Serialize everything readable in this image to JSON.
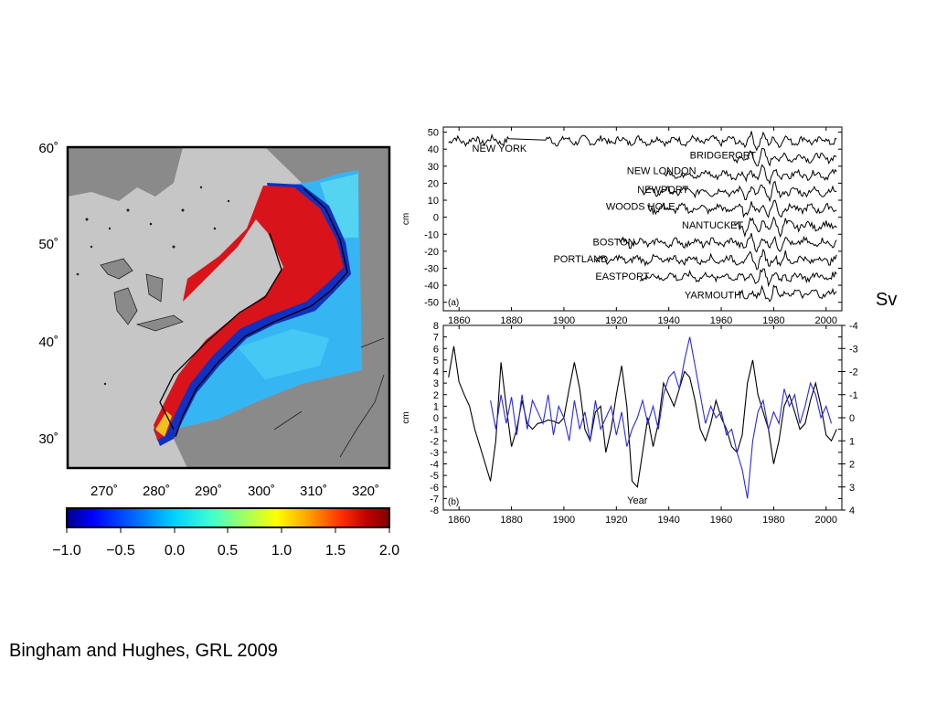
{
  "citation": "Bingham and Hughes, GRL 2009",
  "side_label": "Sv",
  "map": {
    "lat_labels": [
      "60˚",
      "50˚",
      "40˚",
      "30˚"
    ],
    "lat_values": [
      60,
      50,
      40,
      30
    ],
    "lon_labels": [
      "270˚",
      "280˚",
      "290˚",
      "300˚",
      "310˚",
      "320˚"
    ],
    "lon_values": [
      270,
      280,
      290,
      300,
      310,
      320
    ],
    "lon_range": [
      263,
      326
    ],
    "lat_range": [
      27,
      61
    ],
    "colors": {
      "land": "#c6c6c6",
      "shelf": "#8a8a8a",
      "ocean_low": "#3fb8f0",
      "ocean_high": "#d0161a",
      "contour": "#000000"
    },
    "colorbar": {
      "ticks": [
        "−1.0",
        "−0.5",
        "0.0",
        "0.5",
        "1.0",
        "1.5",
        "2.0"
      ],
      "range": [
        -1.0,
        2.0
      ],
      "colormap": [
        "#00008a",
        "#0000ff",
        "#0070ff",
        "#00d0ff",
        "#40ffd0",
        "#a0ff60",
        "#ffff00",
        "#ffa000",
        "#ff3000",
        "#c00000",
        "#800000"
      ]
    }
  },
  "chart_data": [
    {
      "type": "line",
      "panel_label": "(a)",
      "ylabel": "cm",
      "xlim": [
        1854,
        2006
      ],
      "ylim": [
        -55,
        53
      ],
      "xticks": [
        1860,
        1880,
        1900,
        1920,
        1940,
        1960,
        1980,
        2000
      ],
      "yticks": [
        50,
        40,
        30,
        20,
        10,
        0,
        -10,
        -20,
        -30,
        -40,
        -50
      ],
      "series": [
        {
          "name": "NEW YORK",
          "start": 1856,
          "offset": 45
        },
        {
          "name": "BRIDGEPORT",
          "start": 1964,
          "offset": 35
        },
        {
          "name": "NEW LONDON",
          "start": 1938,
          "offset": 25
        },
        {
          "name": "NEWPORT",
          "start": 1930,
          "offset": 15
        },
        {
          "name": "WOODS HOLE",
          "start": 1932,
          "offset": 5
        },
        {
          "name": "NANTUCKET",
          "start": 1965,
          "offset": -5
        },
        {
          "name": "BOSTON",
          "start": 1921,
          "offset": -15
        },
        {
          "name": "PORTLAND",
          "start": 1912,
          "offset": -25
        },
        {
          "name": "EASTPORT",
          "start": 1929,
          "offset": -35
        },
        {
          "name": "YARMOUTH",
          "start": 1966,
          "offset": -45
        }
      ]
    },
    {
      "type": "line",
      "panel_label": "(b)",
      "xlabel": "Year",
      "ylabel": "cm",
      "xlim": [
        1854,
        2006
      ],
      "ylim": [
        -8,
        8
      ],
      "y2lim": [
        4,
        -4
      ],
      "xticks": [
        1860,
        1880,
        1900,
        1920,
        1940,
        1960,
        1980,
        2000
      ],
      "yticks": [
        8,
        7,
        6,
        5,
        4,
        3,
        2,
        1,
        0,
        -1,
        -2,
        -3,
        -4,
        -5,
        -6,
        -7,
        -8
      ],
      "y2ticks": [
        -4,
        -3,
        -2,
        -1,
        0,
        1,
        2,
        3,
        4
      ],
      "series": [
        {
          "color": "#000000",
          "x": [
            1856,
            1858,
            1860,
            1862,
            1864,
            1866,
            1868,
            1870,
            1872,
            1874,
            1876,
            1878,
            1880,
            1882,
            1884,
            1886,
            1888,
            1890,
            1892,
            1894,
            1896,
            1898,
            1900,
            1902,
            1904,
            1906,
            1908,
            1910,
            1912,
            1914,
            1916,
            1918,
            1920,
            1922,
            1924,
            1926,
            1928,
            1930,
            1932,
            1934,
            1936,
            1938,
            1940,
            1942,
            1944,
            1946,
            1948,
            1950,
            1952,
            1954,
            1956,
            1958,
            1960,
            1962,
            1964,
            1966,
            1968,
            1970,
            1972,
            1974,
            1976,
            1978,
            1980,
            1982,
            1984,
            1986,
            1988,
            1990,
            1992,
            1994,
            1996,
            1998,
            2000,
            2002,
            2004
          ],
          "y": [
            3.5,
            6.2,
            3.1,
            2.0,
            1.0,
            -1.0,
            -2.5,
            -4.0,
            -5.5,
            -2.0,
            4.8,
            1.0,
            -2.5,
            -1.0,
            1.5,
            -0.5,
            -1.0,
            -0.5,
            -0.4,
            -0.2,
            -0.3,
            -0.5,
            0.0,
            2.5,
            4.8,
            2.5,
            -1.0,
            -2.0,
            0.5,
            1.0,
            -3.0,
            -1.0,
            2.0,
            4.5,
            1.0,
            -5.5,
            -6.0,
            -3.0,
            0.0,
            -2.5,
            -0.5,
            3.0,
            2.0,
            1.0,
            2.5,
            4.0,
            3.5,
            1.5,
            -1.0,
            -2.0,
            -0.5,
            1.5,
            0.0,
            -1.0,
            -2.5,
            -3.0,
            -1.5,
            3.0,
            5.0,
            2.0,
            0.5,
            -1.0,
            -4.0,
            -2.0,
            1.0,
            2.0,
            0.5,
            -1.0,
            -0.5,
            1.5,
            3.0,
            1.0,
            -1.5,
            -2.0,
            -1.0
          ]
        },
        {
          "color": "#2a2ae0",
          "x": [
            1872,
            1874,
            1876,
            1878,
            1880,
            1882,
            1884,
            1886,
            1888,
            1890,
            1892,
            1894,
            1896,
            1898,
            1900,
            1902,
            1904,
            1906,
            1908,
            1910,
            1912,
            1914,
            1916,
            1918,
            1920,
            1922,
            1924,
            1926,
            1928,
            1930,
            1932,
            1934,
            1936,
            1938,
            1940,
            1942,
            1944,
            1946,
            1948,
            1950,
            1952,
            1954,
            1956,
            1958,
            1960,
            1962,
            1964,
            1966,
            1968,
            1970,
            1972,
            1974,
            1976,
            1978,
            1980,
            1982,
            1984,
            1986,
            1988,
            1990,
            1992,
            1994,
            1996,
            1998,
            2000,
            2002
          ],
          "y": [
            1.5,
            -1.0,
            2.0,
            -0.5,
            1.8,
            -1.5,
            2.0,
            -1.0,
            1.5,
            0.5,
            -0.5,
            2.0,
            -1.5,
            1.0,
            0.0,
            -2.0,
            1.5,
            -1.0,
            0.5,
            -2.0,
            1.5,
            -1.0,
            0.0,
            1.0,
            -1.5,
            0.5,
            -2.5,
            -1.0,
            0.0,
            1.5,
            -0.5,
            1.0,
            -1.0,
            2.0,
            3.5,
            4.0,
            2.5,
            5.0,
            7.0,
            4.5,
            2.0,
            -0.5,
            1.0,
            0.0,
            0.5,
            -1.5,
            -1.0,
            -3.0,
            -4.5,
            -7.0,
            -2.0,
            0.5,
            1.5,
            -1.0,
            0.5,
            -0.5,
            2.5,
            1.0,
            2.0,
            -0.5,
            1.0,
            3.0,
            2.0,
            0.0,
            1.0,
            -0.5
          ]
        }
      ]
    }
  ]
}
